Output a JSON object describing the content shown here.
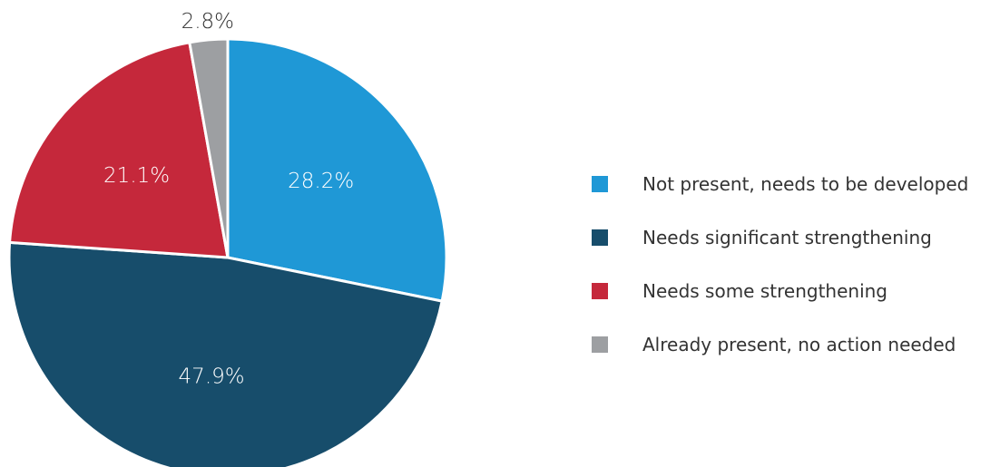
{
  "chart_data": {
    "type": "pie",
    "title": "",
    "slices": [
      {
        "label": "Not present, needs to be developed",
        "value": 28.2,
        "display": "28.2%",
        "color": "#1f98d6",
        "label_color": "#ffffff"
      },
      {
        "label": "Needs significant strengthening",
        "value": 47.9,
        "display": "47.9%",
        "color": "#174d6b",
        "label_color": "#ffffff"
      },
      {
        "label": "Needs some strengthening",
        "value": 21.1,
        "display": "21.1%",
        "color": "#c5283b",
        "label_color": "#ffffff"
      },
      {
        "label": "Already present, no action needed",
        "value": 2.8,
        "display": "2.8%",
        "color": "#9d9fa2",
        "label_color": "#333333"
      }
    ],
    "start_angle_deg": 0,
    "direction": "clockwise",
    "slice_border_color": "#ffffff",
    "legend_position": "right"
  }
}
